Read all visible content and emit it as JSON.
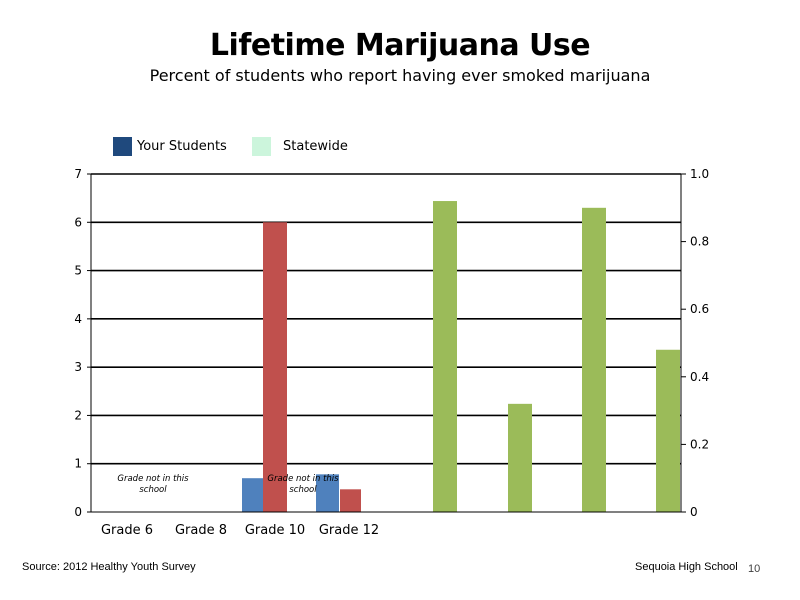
{
  "title": "Lifetime Marijuana Use",
  "subtitle": "Percent of students who report having ever smoked marijuana",
  "legend": [
    {
      "label": "Your Students",
      "color": "#1f497d"
    },
    {
      "label": "Statewide",
      "color": "#ccf5dc"
    }
  ],
  "chart_data": {
    "type": "bar",
    "categories": [
      "Grade 6",
      "Grade 8",
      "Grade 10",
      "Grade 12"
    ],
    "left_axis": {
      "ylim": [
        0,
        7
      ],
      "ticks": [
        "0",
        "1",
        "2",
        "3",
        "4",
        "5",
        "6",
        "7"
      ]
    },
    "right_axis": {
      "ylim": [
        0,
        1.0
      ],
      "ticks": [
        "0",
        "0.2",
        "0.4",
        "0.6",
        "0.8",
        "1.0"
      ]
    },
    "grid": true,
    "legend_position": "top-left",
    "bars_left_axis": [
      {
        "category": "Grade 10",
        "color": "#4f81bd",
        "value": 0.7
      },
      {
        "category": "Grade 10",
        "color": "#c0504d",
        "value": 6.0
      },
      {
        "category": "Grade 12",
        "color": "#4f81bd",
        "value": 0.78
      },
      {
        "category": "Grade 12",
        "color": "#c0504d",
        "value": 0.47
      }
    ],
    "bars_right_axis": [
      {
        "color": "#9bbb59",
        "value": 0.92
      },
      {
        "color": "#9bbb59",
        "value": 0.32
      },
      {
        "color": "#9bbb59",
        "value": 0.9
      },
      {
        "color": "#9bbb59",
        "value": 0.48
      }
    ],
    "annotations": [
      {
        "text": "Grade not in this school",
        "category": "Grade 6"
      },
      {
        "text": "Grade not in this school",
        "category": "Grade 10"
      }
    ]
  },
  "footer": {
    "source": "Source: 2012 Healthy Youth Survey",
    "school": "Sequoia High School",
    "page": "10"
  }
}
